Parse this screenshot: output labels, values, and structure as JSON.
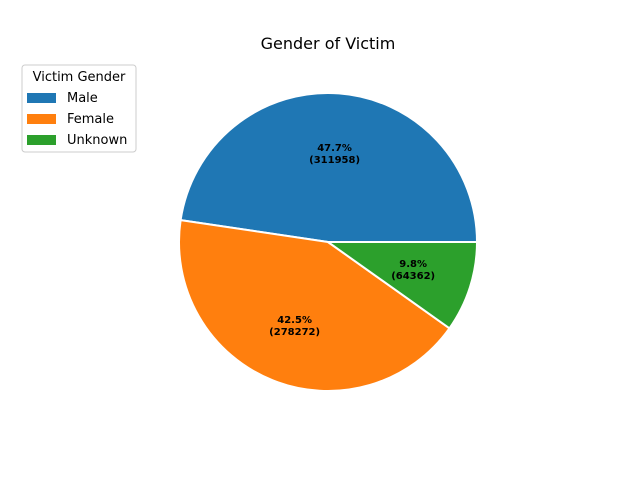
{
  "chart_data": {
    "type": "pie",
    "title": "Gender of Victim",
    "categories": [
      "Male",
      "Female",
      "Unknown"
    ],
    "values": [
      311958,
      278272,
      64362
    ],
    "percent_labels": [
      "47.7%",
      "42.5%",
      "9.8%"
    ],
    "count_labels": [
      "(311958)",
      "(278272)",
      "(64362)"
    ],
    "colors": [
      "#1f77b4",
      "#ff7f0e",
      "#2ca02c"
    ],
    "legend": {
      "title": "Victim Gender",
      "entries": [
        "Male",
        "Female",
        "Unknown"
      ],
      "placement": "upper-left"
    },
    "start_angle_deg": 0,
    "direction": "counterclockwise",
    "edge_color": "#ffffff"
  }
}
